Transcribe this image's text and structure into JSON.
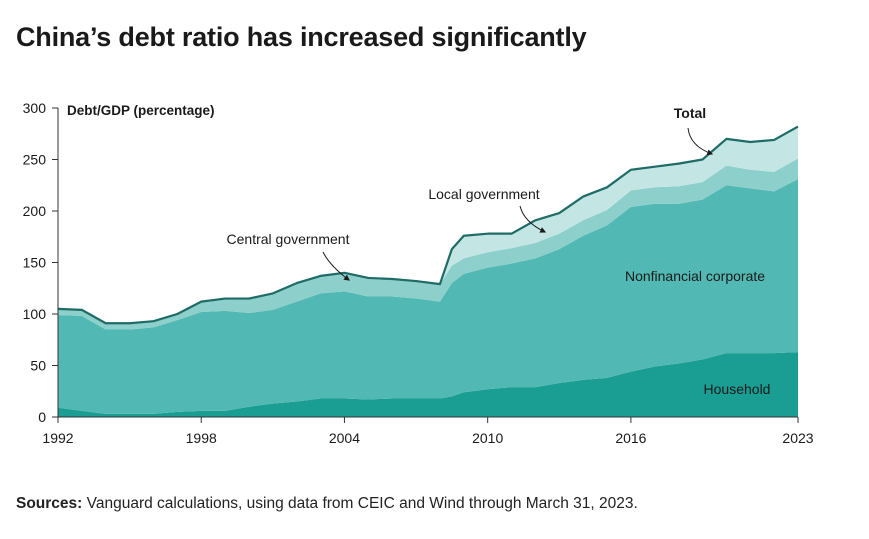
{
  "title": "China’s debt ratio has increased significantly",
  "sources": {
    "label": "Sources:",
    "text": " Vanguard calculations, using data from CEIC and Wind through March 31, 2023."
  },
  "chart_data": {
    "type": "area",
    "stacked": true,
    "ylabel": "Debt/GDP (percentage)",
    "ylim": [
      0,
      300
    ],
    "yticks": [
      0,
      50,
      100,
      150,
      200,
      250,
      300
    ],
    "xlim": [
      1992,
      2023
    ],
    "xticks": [
      1992,
      1998,
      2004,
      2010,
      2016,
      2023
    ],
    "grid": false,
    "x": [
      1992,
      1993,
      1994,
      1995,
      1996,
      1997,
      1998,
      1999,
      2000,
      2001,
      2002,
      2003,
      2004,
      2005,
      2006,
      2007,
      2008,
      2008.5,
      2009,
      2010,
      2011,
      2012,
      2013,
      2014,
      2015,
      2016,
      2017,
      2018,
      2019,
      2020,
      2021,
      2022,
      2023
    ],
    "series": [
      {
        "name": "Household",
        "color": "#1a9e93",
        "values": [
          9,
          6,
          3,
          3,
          3,
          5,
          6,
          6,
          10,
          13,
          15,
          18,
          18,
          17,
          18,
          18,
          18,
          20,
          24,
          27,
          29,
          29,
          33,
          36,
          38,
          44,
          49,
          52,
          56,
          62,
          62,
          62,
          63
        ]
      },
      {
        "name": "Nonfinancial corporate",
        "color": "#52b8b3",
        "values": [
          90,
          92,
          82,
          82,
          84,
          89,
          96,
          97,
          91,
          91,
          97,
          102,
          104,
          100,
          99,
          97,
          94,
          110,
          115,
          118,
          120,
          125,
          130,
          140,
          148,
          160,
          158,
          155,
          155,
          163,
          160,
          157,
          168
        ]
      },
      {
        "name": "Central government",
        "color": "#8dcfcb",
        "values": [
          6,
          6,
          6,
          6,
          6,
          6,
          10,
          12,
          14,
          16,
          18,
          17,
          18,
          18,
          17,
          17,
          17,
          17,
          15,
          15,
          15,
          15,
          15,
          15,
          15,
          16,
          16,
          17,
          17,
          19,
          18,
          19,
          20
        ]
      },
      {
        "name": "Local government",
        "color": "#c3e6e4",
        "values": [
          0,
          0,
          0,
          0,
          0,
          0,
          0,
          0,
          0,
          0,
          0,
          0,
          0,
          0,
          0,
          0,
          0,
          16,
          22,
          18,
          14,
          22,
          20,
          23,
          22,
          20,
          20,
          22,
          22,
          26,
          27,
          31,
          31
        ]
      }
    ],
    "total": {
      "name": "Total",
      "color": "#1f6b66",
      "values": [
        105,
        104,
        91,
        91,
        93,
        100,
        112,
        115,
        115,
        120,
        130,
        137,
        140,
        135,
        134,
        132,
        129,
        163,
        176,
        178,
        178,
        191,
        198,
        214,
        223,
        240,
        243,
        246,
        250,
        270,
        267,
        269,
        282
      ]
    },
    "annotations": [
      {
        "text": "Total",
        "bold": true,
        "point": [
          2018.7,
          249
        ]
      },
      {
        "text": "Local government",
        "bold": false,
        "point": [
          2011.8,
          184
        ]
      },
      {
        "text": "Central government",
        "bold": false,
        "point": [
          2004.3,
          126
        ]
      },
      {
        "text": "Nonfinancial corporate",
        "bold": false
      },
      {
        "text": "Household",
        "bold": false
      }
    ]
  }
}
